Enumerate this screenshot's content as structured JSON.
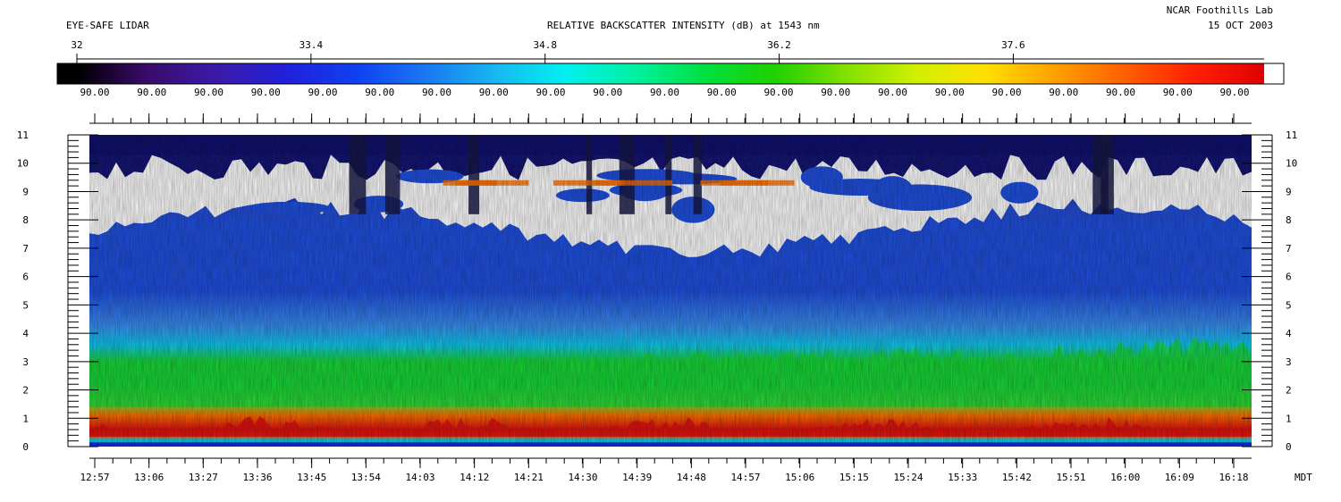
{
  "header": {
    "instrument": "EYE-SAFE LIDAR",
    "title": "RELATIVE BACKSCATTER INTENSITY (dB) at 1543 nm",
    "lab": "NCAR Foothills Lab",
    "date": "15 OCT 2003"
  },
  "colorbar": {
    "ticks": [
      "32",
      "33.4",
      "34.8",
      "36.2",
      "37.6"
    ],
    "range": [
      32,
      39.1
    ],
    "sub_labels": [
      "90.00",
      "90.00",
      "90.00",
      "90.00",
      "90.00",
      "90.00",
      "90.00",
      "90.00",
      "90.00",
      "90.00",
      "90.00",
      "90.00",
      "90.00",
      "90.00",
      "90.00",
      "90.00",
      "90.00",
      "90.00",
      "90.00",
      "90.00",
      "90.00"
    ],
    "stops": [
      "#000000",
      "#3a0a6a",
      "#3a1aa8",
      "#2020d8",
      "#1040f0",
      "#1a78f0",
      "#18b8f0",
      "#00f0f0",
      "#00f0a0",
      "#00e040",
      "#20d000",
      "#80e000",
      "#d0f000",
      "#ffe000",
      "#ffa000",
      "#ff6000",
      "#ff2000",
      "#e00000"
    ],
    "over_color": "#ffffff"
  },
  "colors": {
    "background": "#ffffff",
    "sky": "#101070",
    "haze_blue": "#2050e0",
    "light_blue": "#3a8cf0",
    "cyan": "#10c8f0",
    "green": "#18d838",
    "lime": "#70e030",
    "orange": "#ff7000",
    "red": "#e01010",
    "cloud": "#ffffff"
  },
  "chart_data": {
    "type": "heatmap",
    "x_tick_labels": [
      "12:57",
      "13:06",
      "13:27",
      "13:36",
      "13:45",
      "13:54",
      "14:03",
      "14:12",
      "14:21",
      "14:30",
      "14:39",
      "14:48",
      "14:57",
      "15:06",
      "15:15",
      "15:24",
      "15:33",
      "15:42",
      "15:51",
      "16:00",
      "16:09",
      "16:18"
    ],
    "x_unit": "MDT",
    "y_ticks": [
      "0",
      "1",
      "2",
      "3",
      "4",
      "5",
      "6",
      "7",
      "8",
      "9",
      "10",
      "11"
    ],
    "ylim": [
      0,
      11
    ],
    "layers": {
      "surface_return_top": 0.3,
      "red_aerosol_top": 1.1,
      "green_boundary_layer_top": [
        2.7,
        2.9,
        3.3,
        3.4,
        3.6,
        4.0
      ],
      "cyan_transition_top": 4.3,
      "blue_free_troposphere_top": 8.5,
      "cloud_base_range": [
        6.6,
        8.2
      ],
      "cloud_top": 10.3
    }
  }
}
